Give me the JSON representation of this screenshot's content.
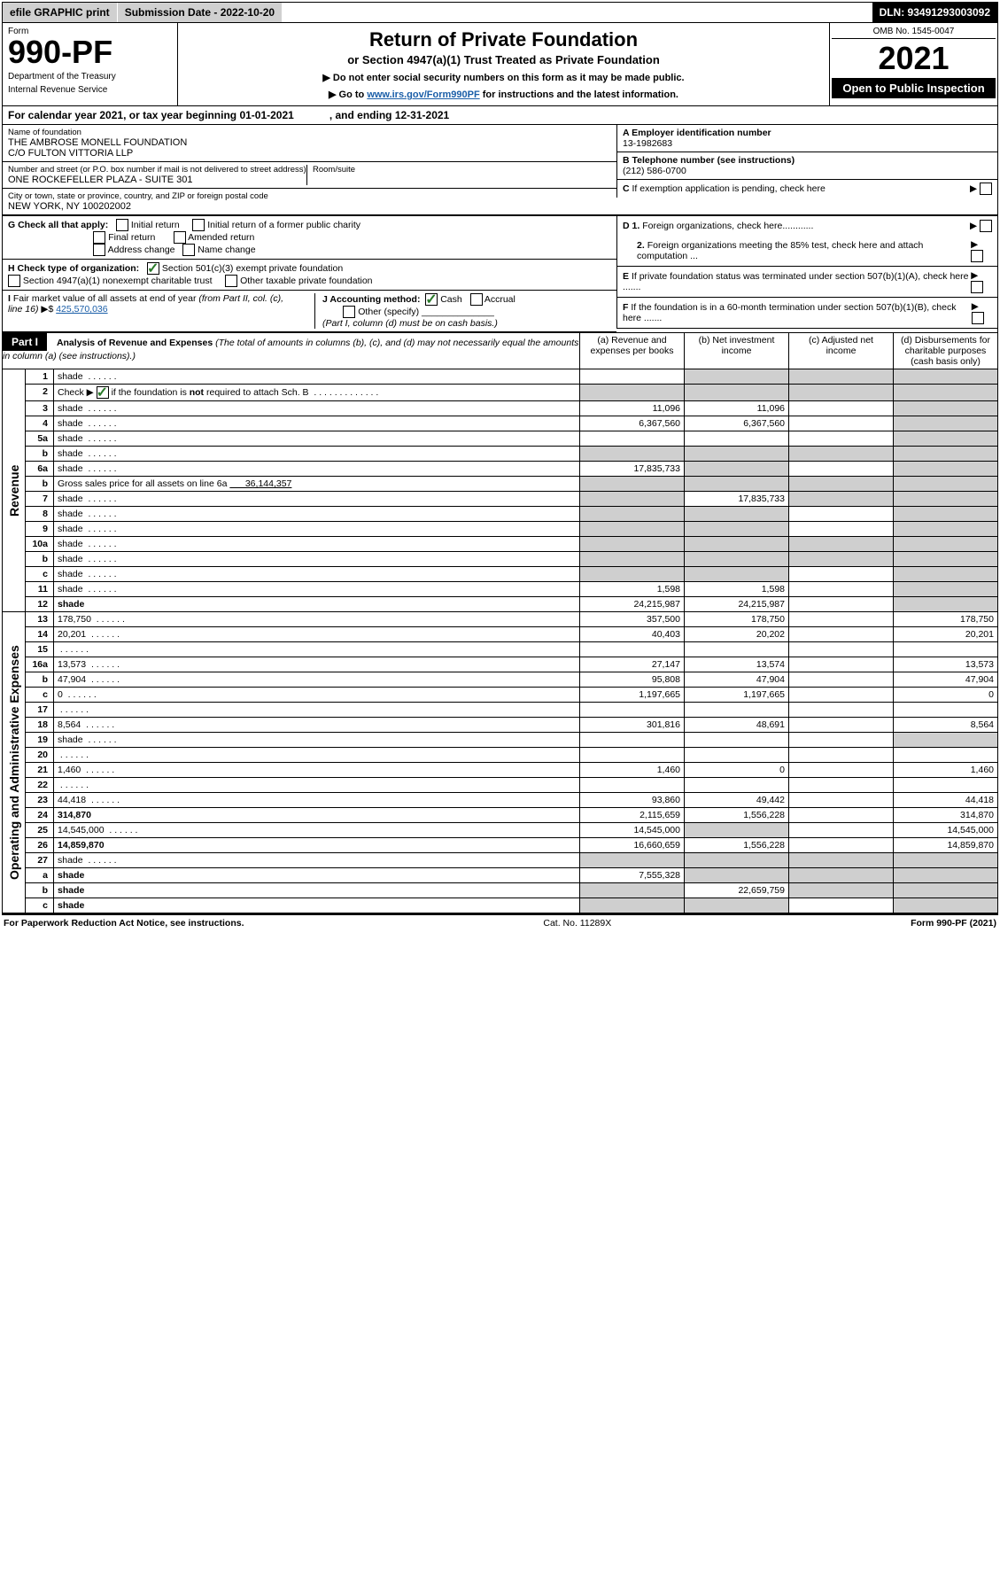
{
  "meta": {
    "efile_label": "efile GRAPHIC print",
    "submission_label": "Submission Date - 2022-10-20",
    "dln": "DLN: 93491293003092",
    "omb": "OMB No. 1545-0047",
    "form_word": "Form",
    "form_no": "990-PF",
    "dept1": "Department of the Treasury",
    "dept2": "Internal Revenue Service",
    "title": "Return of Private Foundation",
    "subtitle": "or Section 4947(a)(1) Trust Treated as Private Foundation",
    "note1": "▶ Do not enter social security numbers on this form as it may be made public.",
    "note2_prefix": "▶ Go to ",
    "note2_link": "www.irs.gov/Form990PF",
    "note2_suffix": " for instructions and the latest information.",
    "year": "2021",
    "open": "Open to Public Inspection",
    "cal_year_label": "For calendar year 2021, or tax year beginning 01-01-2021",
    "cal_year_end": ", and ending 12-31-2021"
  },
  "entity": {
    "name_label": "Name of foundation",
    "name1": "THE AMBROSE MONELL FOUNDATION",
    "name2": "C/O FULTON VITTORIA LLP",
    "addr_label": "Number and street (or P.O. box number if mail is not delivered to street address)",
    "addr": "ONE ROCKEFELLER PLAZA - SUITE 301",
    "room_label": "Room/suite",
    "city_label": "City or town, state or province, country, and ZIP or foreign postal code",
    "city": "NEW YORK, NY  100202002",
    "ein_label": "A Employer identification number",
    "ein": "13-1982683",
    "phone_label": "B Telephone number (see instructions)",
    "phone": "(212) 586-0700",
    "c_label": "C If exemption application is pending, check here",
    "d1": "D 1. Foreign organizations, check here............",
    "d2": "2. Foreign organizations meeting the 85% test, check here and attach computation ...",
    "e_label": "E  If private foundation status was terminated under section 507(b)(1)(A), check here .......",
    "f_label": "F  If the foundation is in a 60-month termination under section 507(b)(1)(B), check here .......",
    "g_label": "G Check all that apply:",
    "g_opts": [
      "Initial return",
      "Initial return of a former public charity",
      "Final return",
      "Amended return",
      "Address change",
      "Name change"
    ],
    "h_label": "H Check type of organization:",
    "h_opt1": "Section 501(c)(3) exempt private foundation",
    "h_opt2": "Section 4947(a)(1) nonexempt charitable trust",
    "h_opt3": "Other taxable private foundation",
    "i_label": "I Fair market value of all assets at end of year (from Part II, col. (c), line 16)",
    "i_value": "425,570,036",
    "j_label": "J Accounting method:",
    "j_cash": "Cash",
    "j_accrual": "Accrual",
    "j_other": "Other (specify)",
    "j_note": "(Part I, column (d) must be on cash basis.)"
  },
  "part1": {
    "tag": "Part I",
    "heading": "Analysis of Revenue and Expenses",
    "heading_note": " (The total of amounts in columns (b), (c), and (d) may not necessarily equal the amounts in column (a) (see instructions).)",
    "col_a": "(a) Revenue and expenses per books",
    "col_b": "(b) Net investment income",
    "col_c": "(c) Adjusted net income",
    "col_d": "(d) Disbursements for charitable purposes (cash basis only)",
    "side_rev": "Revenue",
    "side_exp": "Operating and Administrative Expenses"
  },
  "rows": [
    {
      "n": "1",
      "d": "shade",
      "a": "",
      "b": "shade",
      "c": "shade"
    },
    {
      "n": "2",
      "d": "shade",
      "a": "shade",
      "b": "shade",
      "c": "shade"
    },
    {
      "n": "3",
      "d": "shade",
      "a": "11,096",
      "b": "11,096",
      "c": ""
    },
    {
      "n": "4",
      "d": "shade",
      "a": "6,367,560",
      "b": "6,367,560",
      "c": ""
    },
    {
      "n": "5a",
      "d": "shade",
      "a": "",
      "b": "",
      "c": ""
    },
    {
      "n": "b",
      "d": "shade",
      "a": "shade",
      "b": "shade",
      "c": "shade"
    },
    {
      "n": "6a",
      "d": "shade",
      "a": "17,835,733",
      "b": "shade",
      "c": ""
    },
    {
      "n": "b",
      "d": "shade",
      "a": "shade",
      "b": "shade",
      "c": "shade"
    },
    {
      "n": "7",
      "d": "shade",
      "a": "shade",
      "b": "17,835,733",
      "c": "shade"
    },
    {
      "n": "8",
      "d": "shade",
      "a": "shade",
      "b": "shade",
      "c": ""
    },
    {
      "n": "9",
      "d": "shade",
      "a": "shade",
      "b": "shade",
      "c": ""
    },
    {
      "n": "10a",
      "d": "shade",
      "a": "shade",
      "b": "shade",
      "c": "shade"
    },
    {
      "n": "b",
      "d": "shade",
      "a": "shade",
      "b": "shade",
      "c": "shade"
    },
    {
      "n": "c",
      "d": "shade",
      "a": "shade",
      "b": "shade",
      "c": ""
    },
    {
      "n": "11",
      "d": "shade",
      "a": "1,598",
      "b": "1,598",
      "c": ""
    },
    {
      "n": "12",
      "d": "shade",
      "a": "24,215,987",
      "b": "24,215,987",
      "c": "",
      "bold": true
    },
    {
      "n": "13",
      "d": "178,750",
      "a": "357,500",
      "b": "178,750",
      "c": ""
    },
    {
      "n": "14",
      "d": "20,201",
      "a": "40,403",
      "b": "20,202",
      "c": ""
    },
    {
      "n": "15",
      "d": "",
      "a": "",
      "b": "",
      "c": ""
    },
    {
      "n": "16a",
      "d": "13,573",
      "a": "27,147",
      "b": "13,574",
      "c": ""
    },
    {
      "n": "b",
      "d": "47,904",
      "a": "95,808",
      "b": "47,904",
      "c": ""
    },
    {
      "n": "c",
      "d": "0",
      "a": "1,197,665",
      "b": "1,197,665",
      "c": ""
    },
    {
      "n": "17",
      "d": "",
      "a": "",
      "b": "",
      "c": ""
    },
    {
      "n": "18",
      "d": "8,564",
      "a": "301,816",
      "b": "48,691",
      "c": ""
    },
    {
      "n": "19",
      "d": "shade",
      "a": "",
      "b": "",
      "c": ""
    },
    {
      "n": "20",
      "d": "",
      "a": "",
      "b": "",
      "c": ""
    },
    {
      "n": "21",
      "d": "1,460",
      "a": "1,460",
      "b": "0",
      "c": ""
    },
    {
      "n": "22",
      "d": "",
      "a": "",
      "b": "",
      "c": ""
    },
    {
      "n": "23",
      "d": "44,418",
      "a": "93,860",
      "b": "49,442",
      "c": ""
    },
    {
      "n": "24",
      "d": "314,870",
      "a": "2,115,659",
      "b": "1,556,228",
      "c": "",
      "bold": true
    },
    {
      "n": "25",
      "d": "14,545,000",
      "a": "14,545,000",
      "b": "shade",
      "c": ""
    },
    {
      "n": "26",
      "d": "14,859,870",
      "a": "16,660,659",
      "b": "1,556,228",
      "c": "",
      "bold": true
    },
    {
      "n": "27",
      "d": "shade",
      "a": "shade",
      "b": "shade",
      "c": "shade"
    },
    {
      "n": "a",
      "d": "shade",
      "a": "7,555,328",
      "b": "shade",
      "c": "shade",
      "bold": true
    },
    {
      "n": "b",
      "d": "shade",
      "a": "shade",
      "b": "22,659,759",
      "c": "shade",
      "bold": true
    },
    {
      "n": "c",
      "d": "shade",
      "a": "shade",
      "b": "shade",
      "c": "",
      "bold": true
    }
  ],
  "footer": {
    "left": "For Paperwork Reduction Act Notice, see instructions.",
    "mid": "Cat. No. 11289X",
    "right": "Form 990-PF (2021)"
  },
  "colors": {
    "shade": "#cfcfcf",
    "link": "#1a5ea8",
    "check": "#2a7a2a"
  }
}
